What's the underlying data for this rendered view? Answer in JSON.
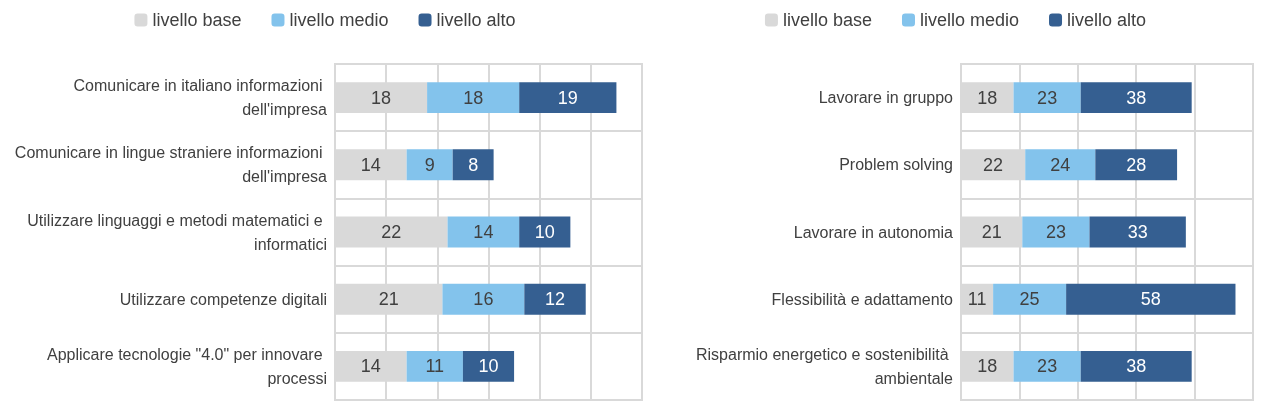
{
  "chart_data": [
    {
      "type": "bar",
      "orientation": "horizontal",
      "stacked": true,
      "data_labels": true,
      "grid": true,
      "legend": "top",
      "categories": [
        "Comunicare in italiano informazioni dell'impresa",
        "Comunicare in lingue straniere informazioni dell'impresa",
        "Utilizzare linguaggi e metodi matematici e informatici",
        "Utilizzare competenze digitali",
        "Applicare tecnologie \"4.0\" per innovare processi"
      ],
      "series": [
        {
          "name": "livello base",
          "color": "#d9d9d9",
          "values": [
            18,
            14,
            22,
            21,
            14
          ]
        },
        {
          "name": "livello medio",
          "color": "#83c3ec",
          "values": [
            18,
            9,
            14,
            16,
            11
          ]
        },
        {
          "name": "livello alto",
          "color": "#355f91",
          "values": [
            19,
            8,
            10,
            12,
            10
          ]
        }
      ],
      "tick_labels": "y"
    },
    {
      "type": "bar",
      "orientation": "horizontal",
      "stacked": true,
      "data_labels": true,
      "grid": true,
      "legend": "top",
      "categories": [
        "Lavorare in gruppo",
        "Problem solving",
        "Lavorare in autonomia",
        "Flessibilità e adattamento",
        "Risparmio energetico e sostenibilità ambientale"
      ],
      "series": [
        {
          "name": "livello base",
          "color": "#d9d9d9",
          "values": [
            18,
            22,
            21,
            11,
            18
          ]
        },
        {
          "name": "livello medio",
          "color": "#83c3ec",
          "values": [
            23,
            24,
            23,
            25,
            23
          ]
        },
        {
          "name": "livello alto",
          "color": "#355f91",
          "values": [
            38,
            28,
            33,
            58,
            38
          ]
        }
      ],
      "tick_labels": "y"
    }
  ]
}
